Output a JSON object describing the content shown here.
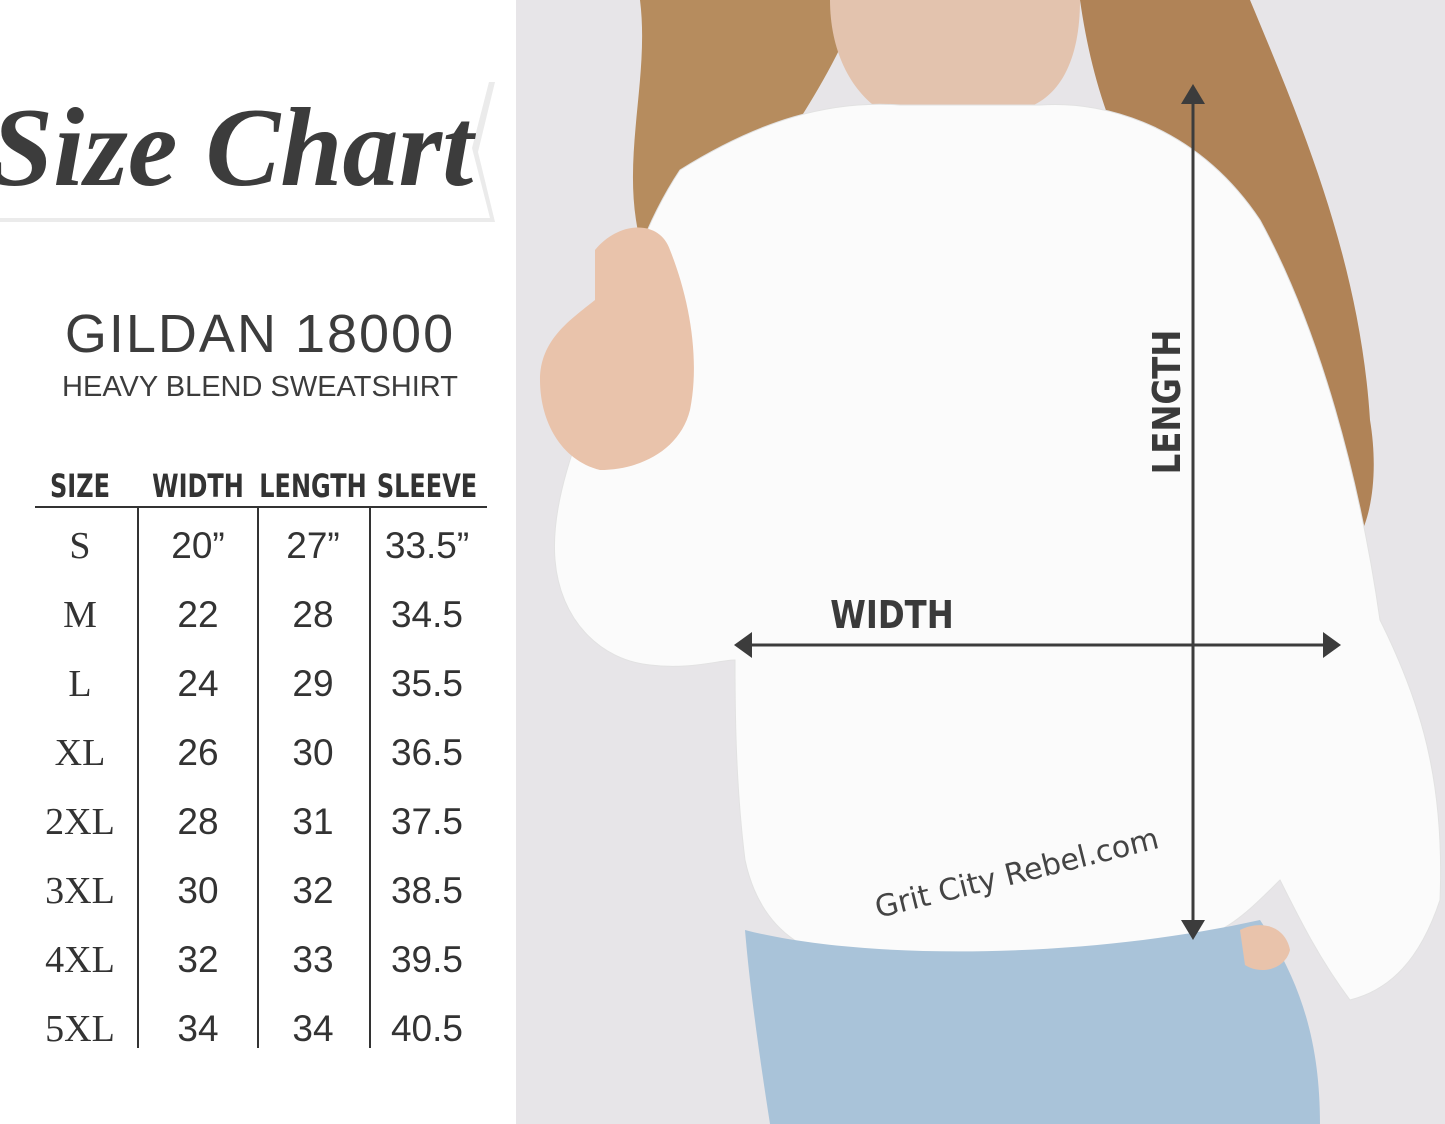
{
  "header": {
    "title": "Size Chart",
    "model": "GILDAN 18000",
    "subtitle": "HEAVY BLEND SWEATSHIRT"
  },
  "table": {
    "columns": [
      "SIZE",
      "WIDTH",
      "LENGTH",
      "SLEEVE"
    ],
    "rows": [
      [
        "S",
        "20”",
        "27”",
        "33.5”"
      ],
      [
        "M",
        "22",
        "28",
        "34.5"
      ],
      [
        "L",
        "24",
        "29",
        "35.5"
      ],
      [
        "XL",
        "26",
        "30",
        "36.5"
      ],
      [
        "2XL",
        "28",
        "31",
        "37.5"
      ],
      [
        "3XL",
        "30",
        "32",
        "38.5"
      ],
      [
        "4XL",
        "32",
        "33",
        "39.5"
      ],
      [
        "5XL",
        "34",
        "34",
        "40.5"
      ]
    ]
  },
  "diagram": {
    "width_label": "WIDTH",
    "length_label": "LENGTH",
    "watermark": "Grit City Rebel.com"
  }
}
